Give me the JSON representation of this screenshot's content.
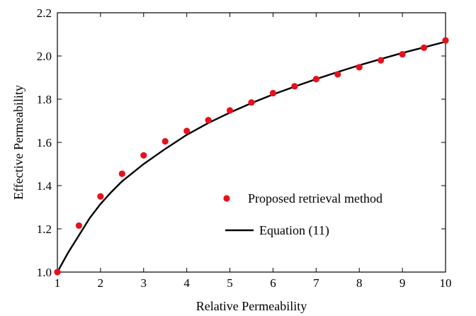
{
  "chart_data": {
    "type": "scatter",
    "xlabel": "Relative Permeability",
    "ylabel": "Effective Permeability",
    "xlim": [
      1,
      10
    ],
    "ylim": [
      1.0,
      2.2
    ],
    "xticks": [
      1,
      2,
      3,
      4,
      5,
      6,
      7,
      8,
      9,
      10
    ],
    "yticks": [
      1.0,
      1.2,
      1.4,
      1.6,
      1.8,
      2.0,
      2.2
    ],
    "ytick_labels": [
      "1.0",
      "1.2",
      "1.4",
      "1.6",
      "1.8",
      "2.0",
      "2.2"
    ],
    "grid": false,
    "legend_position": "lower-right",
    "series": [
      {
        "name": "Proposed retrieval method",
        "kind": "scatter",
        "color": "#e8101b",
        "x": [
          1,
          1.5,
          2,
          2.5,
          3,
          3.5,
          4,
          4.5,
          5,
          5.5,
          6,
          6.5,
          7,
          7.5,
          8,
          8.5,
          9,
          9.5,
          10
        ],
        "y": [
          1.0,
          1.215,
          1.35,
          1.455,
          1.54,
          1.605,
          1.653,
          1.703,
          1.748,
          1.785,
          1.828,
          1.86,
          1.893,
          1.915,
          1.948,
          1.98,
          2.008,
          2.038,
          2.072
        ]
      },
      {
        "name": "Equation (11)",
        "kind": "line",
        "color": "#000000",
        "x": [
          1,
          1.25,
          1.5,
          1.75,
          2,
          2.25,
          2.5,
          3,
          3.5,
          4,
          4.5,
          5,
          5.5,
          6,
          6.5,
          7,
          7.5,
          8,
          8.5,
          9,
          9.5,
          10
        ],
        "y": [
          1.0,
          1.09,
          1.17,
          1.25,
          1.315,
          1.37,
          1.42,
          1.5,
          1.57,
          1.635,
          1.69,
          1.738,
          1.782,
          1.822,
          1.858,
          1.893,
          1.926,
          1.957,
          1.986,
          2.014,
          2.04,
          2.066
        ]
      }
    ]
  }
}
